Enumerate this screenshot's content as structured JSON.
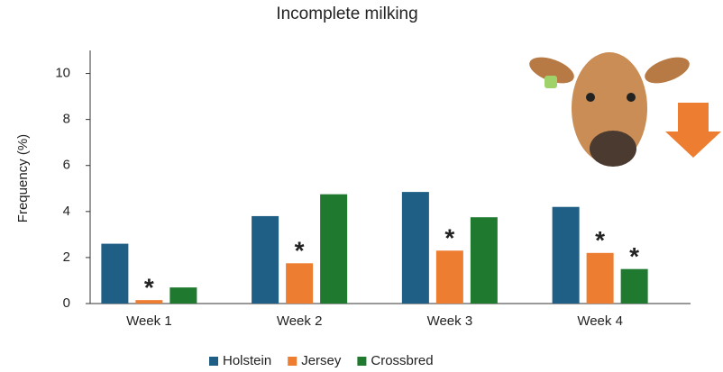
{
  "chart_data": {
    "type": "bar",
    "title": "Incomplete milking",
    "y_label": "Frequency (%)",
    "categories": [
      "Week 1",
      "Week 2",
      "Week 3",
      "Week 4"
    ],
    "series": [
      {
        "name": "Holstein",
        "color": "#1f5f86",
        "values": [
          2.6,
          3.8,
          4.85,
          4.2
        ]
      },
      {
        "name": "Jersey",
        "color": "#ed7d31",
        "values": [
          0.15,
          1.75,
          2.3,
          2.2
        ],
        "annotations": [
          "*",
          "*",
          "*",
          "*"
        ]
      },
      {
        "name": "Crossbred",
        "color": "#1f7a2f",
        "values": [
          0.7,
          4.75,
          3.75,
          1.5
        ],
        "annotations": [
          null,
          null,
          null,
          "*"
        ]
      }
    ],
    "ylim": [
      0,
      11
    ],
    "yticks": [
      0,
      2,
      4,
      6,
      8,
      10
    ],
    "grid": false,
    "legend": "bottom"
  }
}
